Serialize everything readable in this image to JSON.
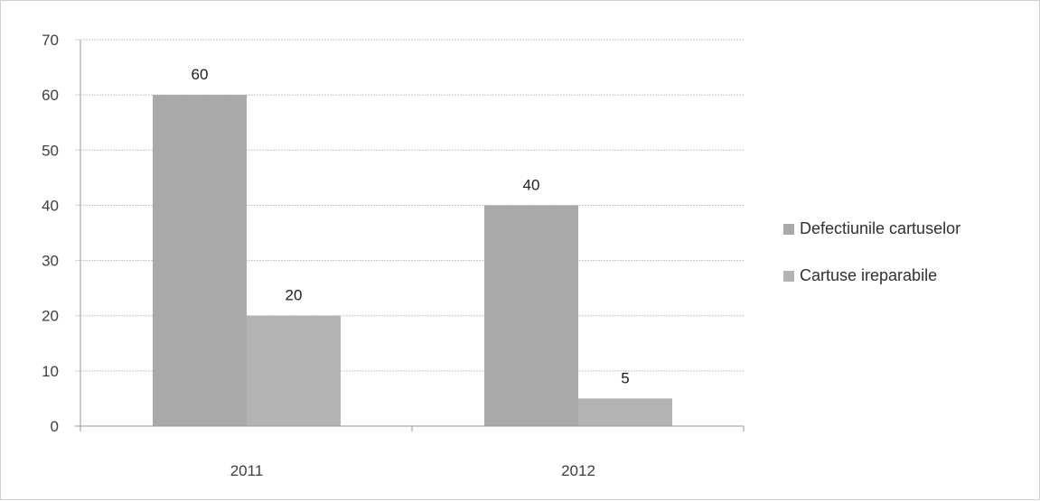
{
  "chart_data": {
    "type": "bar",
    "categories": [
      "2011",
      "2012"
    ],
    "series": [
      {
        "name": "Defectiunile cartuselor",
        "values": [
          60,
          40
        ],
        "color": "#a9a9a9"
      },
      {
        "name": "Cartuse ireparabile",
        "values": [
          20,
          5
        ],
        "color": "#b3b3b3"
      }
    ],
    "ylim": [
      0,
      70
    ],
    "yticks": [
      0,
      10,
      20,
      30,
      40,
      50,
      60,
      70
    ],
    "grid": true,
    "legend": "right",
    "data_labels": true,
    "title": "",
    "xlabel": "",
    "ylabel": ""
  }
}
